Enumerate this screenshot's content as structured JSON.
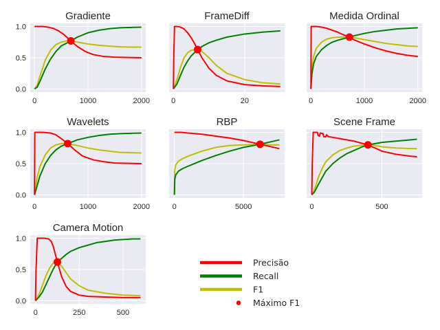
{
  "colors": {
    "precisao": "#ff0000",
    "recall": "#008000",
    "f1": "#bfbf00",
    "max_f1": "#ff0000",
    "panel_background": "#eaeaf2",
    "grid": "#ffffff"
  },
  "legend": {
    "placement": "lower-right",
    "entries": [
      {
        "key": "precisao",
        "label": "Precisão",
        "marker": "line"
      },
      {
        "key": "recall",
        "label": "Recall",
        "marker": "line"
      },
      {
        "key": "f1",
        "label": "F1",
        "marker": "line"
      },
      {
        "key": "max_f1",
        "label": "Máximo F1",
        "marker": "dot"
      }
    ]
  },
  "chart_data": [
    {
      "type": "line",
      "title": "Gradiente",
      "xlim": [
        -80,
        2080
      ],
      "ylim": [
        -0.05,
        1.05
      ],
      "xticks": [
        0,
        1000,
        2000
      ],
      "xtick_labels": [
        "0",
        "1000",
        "2000"
      ],
      "yticks": [
        0,
        0.5,
        1
      ],
      "ytick_labels": [
        "0.0",
        "0.5",
        "1.0"
      ],
      "grid": true,
      "max_f1": {
        "x": 680,
        "y": 0.77
      },
      "series": [
        {
          "key": "precisao",
          "x": [
            0,
            5,
            150,
            250,
            350,
            450,
            550,
            680,
            800,
            950,
            1100,
            1300,
            1500,
            1700,
            2000
          ],
          "y": [
            1.0,
            1.0,
            1.0,
            0.99,
            0.97,
            0.93,
            0.87,
            0.77,
            0.68,
            0.6,
            0.55,
            0.52,
            0.51,
            0.505,
            0.5
          ]
        },
        {
          "key": "recall",
          "x": [
            0,
            50,
            100,
            200,
            300,
            400,
            500,
            680,
            800,
            1000,
            1200,
            1400,
            1600,
            1800,
            2000
          ],
          "y": [
            0.0,
            0.03,
            0.12,
            0.32,
            0.48,
            0.6,
            0.69,
            0.77,
            0.83,
            0.9,
            0.94,
            0.965,
            0.98,
            0.985,
            0.99
          ]
        },
        {
          "key": "f1",
          "x": [
            0,
            50,
            100,
            200,
            300,
            400,
            500,
            600,
            680,
            800,
            1000,
            1200,
            1400,
            1600,
            1800,
            2000
          ],
          "y": [
            0.0,
            0.06,
            0.2,
            0.46,
            0.62,
            0.71,
            0.75,
            0.77,
            0.77,
            0.75,
            0.72,
            0.7,
            0.685,
            0.675,
            0.67,
            0.67
          ]
        }
      ]
    },
    {
      "type": "line",
      "title": "FrameDiff",
      "xlim": [
        -1.2,
        31.2
      ],
      "ylim": [
        -0.05,
        1.05
      ],
      "xticks": [
        0,
        20
      ],
      "xtick_labels": [
        "0",
        "20"
      ],
      "yticks": [
        0,
        0.5,
        1
      ],
      "ytick_labels": [
        "",
        "",
        ""
      ],
      "grid": true,
      "max_f1": {
        "x": 6.8,
        "y": 0.63
      },
      "series": [
        {
          "key": "precisao",
          "x": [
            0,
            0.1,
            0.3,
            1,
            2,
            3,
            4,
            5,
            6,
            6.8,
            8,
            10,
            12,
            15,
            20,
            25,
            30
          ],
          "y": [
            0.0,
            0.5,
            1.0,
            1.0,
            0.99,
            0.96,
            0.9,
            0.82,
            0.72,
            0.63,
            0.5,
            0.33,
            0.22,
            0.13,
            0.07,
            0.05,
            0.04
          ]
        },
        {
          "key": "recall",
          "x": [
            0,
            1,
            2,
            3,
            4,
            5,
            6.8,
            8,
            10,
            12,
            15,
            20,
            25,
            30
          ],
          "y": [
            0.0,
            0.08,
            0.22,
            0.35,
            0.45,
            0.53,
            0.63,
            0.68,
            0.74,
            0.78,
            0.83,
            0.88,
            0.91,
            0.93
          ]
        },
        {
          "key": "f1",
          "x": [
            0,
            1,
            2,
            3,
            4,
            5,
            6.8,
            8,
            10,
            12,
            15,
            20,
            25,
            30
          ],
          "y": [
            0.0,
            0.15,
            0.35,
            0.5,
            0.58,
            0.62,
            0.63,
            0.6,
            0.5,
            0.38,
            0.25,
            0.15,
            0.1,
            0.08
          ]
        }
      ]
    },
    {
      "type": "line",
      "title": "Medida Ordinal",
      "xlim": [
        -80,
        2080
      ],
      "ylim": [
        -0.05,
        1.05
      ],
      "xticks": [
        0,
        1000,
        2000
      ],
      "xtick_labels": [
        "0",
        "1000",
        "2000"
      ],
      "yticks": [
        0,
        0.5,
        1
      ],
      "ytick_labels": [
        "",
        "",
        ""
      ],
      "grid": true,
      "max_f1": {
        "x": 720,
        "y": 0.83
      },
      "series": [
        {
          "key": "precisao",
          "x": [
            0,
            5,
            100,
            200,
            300,
            400,
            500,
            600,
            720,
            800,
            1000,
            1200,
            1400,
            1600,
            1800,
            2000
          ],
          "y": [
            0.0,
            1.0,
            1.0,
            0.99,
            0.97,
            0.94,
            0.91,
            0.87,
            0.83,
            0.79,
            0.72,
            0.66,
            0.61,
            0.57,
            0.54,
            0.52
          ]
        },
        {
          "key": "recall",
          "x": [
            0,
            20,
            50,
            100,
            200,
            300,
            400,
            500,
            720,
            800,
            1000,
            1200,
            1400,
            1600,
            1800,
            2000
          ],
          "y": [
            0.0,
            0.25,
            0.4,
            0.52,
            0.63,
            0.7,
            0.75,
            0.78,
            0.83,
            0.85,
            0.89,
            0.92,
            0.94,
            0.96,
            0.97,
            0.98
          ]
        },
        {
          "key": "f1",
          "x": [
            0,
            20,
            50,
            100,
            200,
            300,
            400,
            500,
            600,
            720,
            800,
            1000,
            1200,
            1400,
            1600,
            1800,
            2000
          ],
          "y": [
            0.0,
            0.35,
            0.52,
            0.65,
            0.75,
            0.8,
            0.82,
            0.83,
            0.83,
            0.83,
            0.82,
            0.79,
            0.76,
            0.73,
            0.71,
            0.69,
            0.68
          ]
        }
      ]
    },
    {
      "type": "line",
      "title": "Wavelets",
      "xlim": [
        -80,
        2080
      ],
      "ylim": [
        -0.05,
        1.05
      ],
      "xticks": [
        0,
        1000,
        2000
      ],
      "xtick_labels": [
        "0",
        "1000",
        "2000"
      ],
      "yticks": [
        0,
        0.5,
        1
      ],
      "ytick_labels": [
        "0.0",
        "0.5",
        "1.0"
      ],
      "grid": true,
      "max_f1": {
        "x": 620,
        "y": 0.82
      },
      "series": [
        {
          "key": "precisao",
          "x": [
            0,
            5,
            150,
            300,
            400,
            500,
            620,
            750,
            900,
            1100,
            1300,
            1500,
            1700,
            2000
          ],
          "y": [
            0.0,
            1.0,
            1.0,
            0.99,
            0.96,
            0.9,
            0.82,
            0.72,
            0.62,
            0.56,
            0.53,
            0.51,
            0.505,
            0.5
          ]
        },
        {
          "key": "recall",
          "x": [
            0,
            50,
            100,
            200,
            300,
            400,
            500,
            620,
            800,
            1000,
            1200,
            1400,
            1600,
            1800,
            2000
          ],
          "y": [
            0.0,
            0.15,
            0.3,
            0.5,
            0.63,
            0.72,
            0.78,
            0.82,
            0.88,
            0.92,
            0.95,
            0.97,
            0.98,
            0.985,
            0.99
          ]
        },
        {
          "key": "f1",
          "x": [
            0,
            50,
            100,
            200,
            300,
            400,
            500,
            620,
            800,
            1000,
            1200,
            1400,
            1600,
            1800,
            2000
          ],
          "y": [
            0.0,
            0.28,
            0.45,
            0.64,
            0.75,
            0.8,
            0.82,
            0.82,
            0.79,
            0.75,
            0.72,
            0.7,
            0.68,
            0.675,
            0.67
          ]
        }
      ]
    },
    {
      "type": "line",
      "title": "RBP",
      "xlim": [
        -380,
        7980
      ],
      "ylim": [
        -0.05,
        1.05
      ],
      "xticks": [
        0,
        5000
      ],
      "xtick_labels": [
        "0",
        "5000"
      ],
      "yticks": [
        0,
        0.5,
        1
      ],
      "ytick_labels": [
        "",
        "",
        ""
      ],
      "grid": true,
      "max_f1": {
        "x": 6200,
        "y": 0.81
      },
      "series": [
        {
          "key": "precisao",
          "x": [
            0,
            500,
            1000,
            2000,
            3000,
            4000,
            5000,
            6200,
            7000,
            7600
          ],
          "y": [
            1.0,
            1.0,
            0.99,
            0.97,
            0.94,
            0.91,
            0.87,
            0.81,
            0.77,
            0.74
          ]
        },
        {
          "key": "recall",
          "x": [
            0,
            30,
            100,
            300,
            600,
            1000,
            2000,
            3000,
            4000,
            5000,
            6200,
            7000,
            7600
          ],
          "y": [
            0.0,
            0.25,
            0.32,
            0.38,
            0.42,
            0.46,
            0.55,
            0.63,
            0.7,
            0.76,
            0.81,
            0.85,
            0.88
          ]
        },
        {
          "key": "f1",
          "x": [
            0,
            30,
            100,
            300,
            600,
            1000,
            2000,
            3000,
            4000,
            5000,
            6200,
            7000,
            7600
          ],
          "y": [
            0.0,
            0.4,
            0.48,
            0.54,
            0.58,
            0.62,
            0.7,
            0.76,
            0.79,
            0.8,
            0.81,
            0.8,
            0.8
          ]
        }
      ]
    },
    {
      "type": "line",
      "title": "Scene Frame",
      "xlim": [
        -37,
        787
      ],
      "ylim": [
        -0.05,
        1.05
      ],
      "xticks": [
        0,
        500
      ],
      "xtick_labels": [
        "0",
        "500"
      ],
      "yticks": [
        0,
        0.5,
        1
      ],
      "ytick_labels": [
        "",
        "",
        ""
      ],
      "grid": true,
      "max_f1": {
        "x": 400,
        "y": 0.8
      },
      "series": [
        {
          "key": "precisao",
          "x": [
            0,
            3,
            10,
            20,
            40,
            45,
            55,
            60,
            80,
            85,
            100,
            105,
            120,
            150,
            200,
            250,
            300,
            350,
            400,
            450,
            500,
            600,
            700,
            750
          ],
          "y": [
            0.0,
            0.5,
            1.0,
            1.0,
            1.0,
            0.95,
            0.94,
            0.99,
            0.98,
            0.93,
            0.93,
            0.96,
            0.93,
            0.92,
            0.9,
            0.88,
            0.86,
            0.83,
            0.8,
            0.75,
            0.7,
            0.65,
            0.62,
            0.61
          ]
        },
        {
          "key": "recall",
          "x": [
            0,
            20,
            50,
            80,
            100,
            150,
            200,
            250,
            300,
            350,
            400,
            500,
            600,
            700,
            750
          ],
          "y": [
            0.0,
            0.05,
            0.18,
            0.3,
            0.38,
            0.5,
            0.59,
            0.66,
            0.71,
            0.76,
            0.8,
            0.84,
            0.86,
            0.88,
            0.89
          ]
        },
        {
          "key": "f1",
          "x": [
            0,
            20,
            50,
            80,
            100,
            150,
            200,
            250,
            300,
            350,
            400,
            450,
            500,
            600,
            700,
            750
          ],
          "y": [
            0.0,
            0.09,
            0.3,
            0.45,
            0.53,
            0.64,
            0.71,
            0.75,
            0.78,
            0.79,
            0.8,
            0.79,
            0.77,
            0.75,
            0.74,
            0.74
          ]
        }
      ]
    },
    {
      "type": "line",
      "title": "Camera Motion",
      "xlim": [
        -30,
        630
      ],
      "ylim": [
        -0.05,
        1.05
      ],
      "xticks": [
        0,
        250,
        500
      ],
      "xtick_labels": [
        "0",
        "250",
        "500"
      ],
      "yticks": [
        0,
        0.5,
        1
      ],
      "ytick_labels": [
        "0.0",
        "0.5",
        "1.0"
      ],
      "grid": true,
      "max_f1": {
        "x": 125,
        "y": 0.62
      },
      "series": [
        {
          "key": "precisao",
          "x": [
            0,
            3,
            10,
            50,
            75,
            90,
            100,
            110,
            125,
            150,
            175,
            200,
            250,
            300,
            400,
            500,
            600
          ],
          "y": [
            0.0,
            0.5,
            1.0,
            1.0,
            0.99,
            0.95,
            0.88,
            0.78,
            0.62,
            0.38,
            0.23,
            0.15,
            0.09,
            0.07,
            0.06,
            0.05,
            0.05
          ]
        },
        {
          "key": "recall",
          "x": [
            0,
            20,
            40,
            60,
            80,
            100,
            125,
            150,
            175,
            200,
            225,
            250,
            275,
            300,
            350,
            400,
            450,
            500,
            550,
            600
          ],
          "y": [
            0.0,
            0.06,
            0.14,
            0.26,
            0.38,
            0.5,
            0.62,
            0.68,
            0.74,
            0.79,
            0.82,
            0.85,
            0.87,
            0.89,
            0.93,
            0.95,
            0.97,
            0.98,
            0.99,
            0.99
          ]
        },
        {
          "key": "f1",
          "x": [
            0,
            20,
            40,
            60,
            80,
            100,
            125,
            150,
            175,
            200,
            250,
            300,
            400,
            500,
            600
          ],
          "y": [
            0.0,
            0.1,
            0.25,
            0.4,
            0.52,
            0.6,
            0.62,
            0.55,
            0.45,
            0.35,
            0.24,
            0.17,
            0.12,
            0.09,
            0.08
          ]
        }
      ]
    }
  ]
}
